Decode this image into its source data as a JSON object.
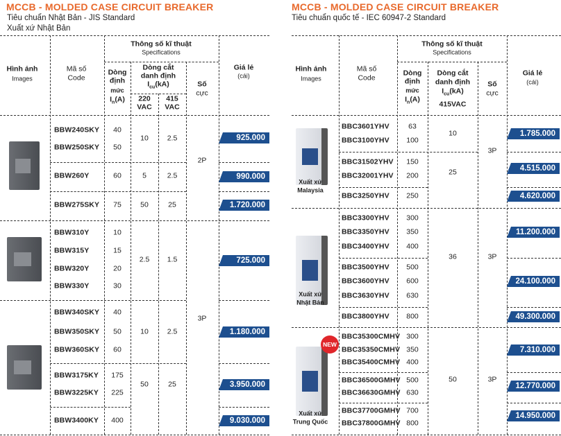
{
  "left": {
    "title": "MCCB - MOLDED CASE CIRCUIT BREAKER",
    "subtitle": "Tiêu chuẩn Nhật Bản - JIS Standard",
    "origin": "Xuất xứ Nhật Bản",
    "headers": {
      "images_vi": "Hình ảnh",
      "images_en": "Images",
      "code_vi": "Mã số",
      "code_en": "Code",
      "spec_vi": "Thông số kĩ thuật",
      "spec_en": "Specifications",
      "rated_l1": "Dòng",
      "rated_l2": "định",
      "rated_l3": "mức",
      "rated_sym": "I",
      "rated_sub": "n",
      "rated_unit": "(A)",
      "breaking_l1": "Dòng cắt",
      "breaking_l2": "danh định",
      "breaking_sym": "I",
      "breaking_sub": "cu",
      "breaking_unit": "(kA)",
      "v220_l1": "220",
      "v220_l2": "VAC",
      "v415_l1": "415",
      "v415_l2": "VAC",
      "poles_l1": "Số",
      "poles_l2": "cực",
      "price_vi": "Giá lẻ",
      "price_unit": "(cái)"
    },
    "rows": [
      {
        "code": "BBW240SKY",
        "in": "40"
      },
      {
        "code": "BBW250SKY",
        "in": "50"
      },
      {
        "code": "BBW260Y",
        "in": "60"
      },
      {
        "code": "BBW275SKY",
        "in": "75"
      },
      {
        "code": "BBW310Y",
        "in": "10"
      },
      {
        "code": "BBW315Y",
        "in": "15"
      },
      {
        "code": "BBW320Y",
        "in": "20"
      },
      {
        "code": "BBW330Y",
        "in": "30"
      },
      {
        "code": "BBW340SKY",
        "in": "40"
      },
      {
        "code": "BBW350SKY",
        "in": "50"
      },
      {
        "code": "BBW360SKY",
        "in": "60"
      },
      {
        "code": "BBW3175KY",
        "in": "175"
      },
      {
        "code": "BBW3225KY",
        "in": "225"
      },
      {
        "code": "BBW3400KY",
        "in": "400"
      }
    ],
    "breaking": [
      {
        "v220": "10",
        "v415": "2.5"
      },
      {
        "v220": "5",
        "v415": "2.5"
      },
      {
        "v220": "50",
        "v415": "25"
      },
      {
        "v220": "2.5",
        "v415": "1.5"
      },
      {
        "v220": "10",
        "v415": "2.5"
      },
      {
        "v220": "50",
        "v415": "25"
      }
    ],
    "poles": [
      "2P",
      "3P"
    ],
    "prices": [
      "925.000",
      "990.000",
      "1.720.000",
      "725.000",
      "1.180.000",
      "3.950.000",
      "9.030.000"
    ]
  },
  "right": {
    "title": "MCCB - MOLDED CASE CIRCUIT BREAKER",
    "subtitle": "Tiêu chuẩn quốc tế - IEC 60947-2 Standard",
    "headers": {
      "images_vi": "Hình ảnh",
      "images_en": "Images",
      "code_vi": "Mã số",
      "code_en": "Code",
      "spec_vi": "Thông số kĩ thuật",
      "spec_en": "Specifications",
      "rated_l1": "Dòng",
      "rated_l2": "định",
      "rated_l3": "mức",
      "rated_sym": "I",
      "rated_sub": "n",
      "rated_unit": "(A)",
      "breaking_l1": "Dòng cắt",
      "breaking_l2": "danh định",
      "breaking_sym": "I",
      "breaking_sub": "cu",
      "breaking_unit": "(kA)",
      "v415": "415VAC",
      "poles_l1": "Số",
      "poles_l2": "cực",
      "price_vi": "Giá lẻ",
      "price_unit": "(cái)"
    },
    "origins": [
      {
        "l1": "Xuất xứ",
        "l2": "Malaysia"
      },
      {
        "l1": "Xuất xứ",
        "l2": "Nhật Bản"
      },
      {
        "l1": "Xuất xứ",
        "l2": "Trung Quốc"
      }
    ],
    "new_badge": "NEW",
    "rows": [
      {
        "code": "BBC3601YHV",
        "in": "63"
      },
      {
        "code": "BBC3100YHV",
        "in": "100"
      },
      {
        "code": "BBC31502YHV",
        "in": "150"
      },
      {
        "code": "BBC32001YHV",
        "in": "200"
      },
      {
        "code": "BBC3250YHV",
        "in": "250"
      },
      {
        "code": "BBC3300YHV",
        "in": "300"
      },
      {
        "code": "BBC3350YHV",
        "in": "350"
      },
      {
        "code": "BBC3400YHV",
        "in": "400"
      },
      {
        "code": "BBC3500YHV",
        "in": "500"
      },
      {
        "code": "BBC3600YHV",
        "in": "600"
      },
      {
        "code": "BBC3630YHV",
        "in": "630"
      },
      {
        "code": "BBC3800YHV",
        "in": "800"
      },
      {
        "code": "BBC35300CMHV",
        "in": "300"
      },
      {
        "code": "BBC35350CMHV",
        "in": "350"
      },
      {
        "code": "BBC35400CMHV",
        "in": "400"
      },
      {
        "code": "BBC36500GMHV",
        "in": "500"
      },
      {
        "code": "BBC36630GMHV",
        "in": "630"
      },
      {
        "code": "BBC37700GMHV",
        "in": "700"
      },
      {
        "code": "BBC37800GMHV",
        "in": "800"
      }
    ],
    "breaking": [
      "10",
      "25",
      "36",
      "50"
    ],
    "poles": [
      "3P",
      "3P",
      "3P"
    ],
    "prices": [
      "1.785.000",
      "4.515.000",
      "4.620.000",
      "11.200.000",
      "24.100.000",
      "49.300.000",
      "7.310.000",
      "12.770.000",
      "14.950.000"
    ]
  },
  "colors": {
    "title": "#e8692c",
    "price_bg": "#1d4f8f",
    "new_badge": "#e0262b"
  }
}
